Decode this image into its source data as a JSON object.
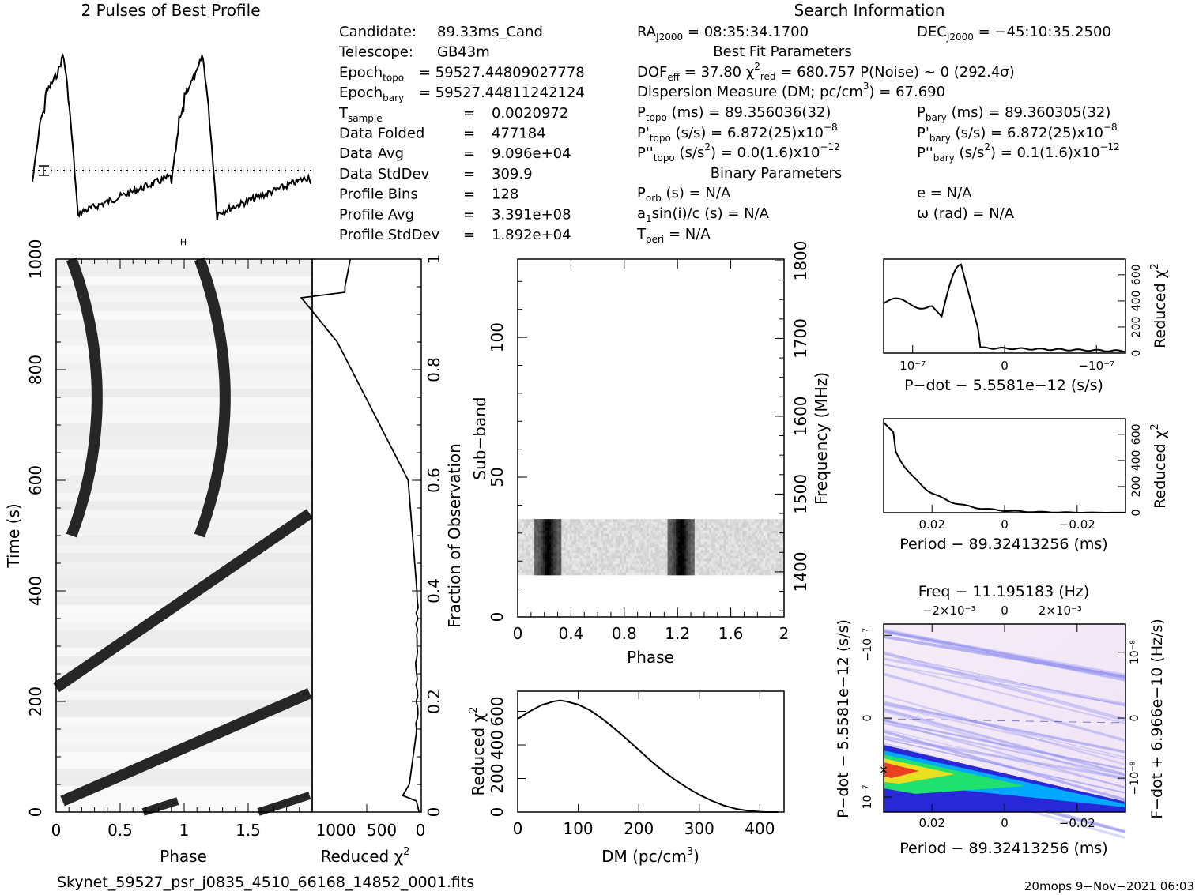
{
  "title_profile": "2 Pulses of Best Profile",
  "title_search": "Search Information",
  "info_left": [
    {
      "k": "Candidate:",
      "v": "89.33ms_Cand"
    },
    {
      "k": "Telescope:",
      "v": "GB43m"
    },
    {
      "k": "Epoch_topo",
      "v": "= 59527.44809027778"
    },
    {
      "k": "Epoch_bary",
      "v": "= 59527.44811242124"
    },
    {
      "k": "T_sample",
      "v": "0.0020972"
    },
    {
      "k": "Data Folded",
      "v": "477184"
    },
    {
      "k": "Data Avg",
      "v": "9.096e+04"
    },
    {
      "k": "Data StdDev",
      "v": "309.9"
    },
    {
      "k": "Profile Bins",
      "v": "128"
    },
    {
      "k": "Profile Avg",
      "v": "3.391e+08"
    },
    {
      "k": "Profile StdDev",
      "v": "1.892e+04"
    }
  ],
  "info_mid": {
    "ra": "RA_J2000 = 08:35:34.1700",
    "dec": "DEC_J2000 = −45:10:35.2500",
    "best_fit": "Best Fit Parameters",
    "dof": "DOF_eff = 37.80  χ²_red = 680.757  P(Noise) ~ 0  (292.4σ)",
    "dm": "Dispersion Measure (DM; pc/cm³) = 67.690",
    "ptopo": "P_topo (ms) = 89.356036(32)",
    "pbary": "P_bary (ms) = 89.360305(32)",
    "pdtopo": "P'_topo (s/s) = 6.872(25)x10⁻⁸",
    "pdbary": "P'_bary (s/s) = 6.872(25)x10⁻⁸",
    "pddtopo": "P''_topo (s/s²) = 0.0(1.6)x10⁻¹²",
    "pddbary": "P''_bary (s/s²) = 0.1(1.6)x10⁻¹²",
    "binary": "Binary Parameters",
    "porb": "P_orb (s) = N/A",
    "e": "e = N/A",
    "a1": "a_1 sin(i)/c (s) = N/A",
    "omega": "ω (rad) = N/A",
    "tperi": "T_peri = N/A"
  },
  "footer_file": "Skynet_59527_psr_j0835_4510_66168_14852_0001.fits",
  "footer_right": "20mops  9−Nov−2021 06:03",
  "chart_data": [
    {
      "name": "profile",
      "type": "line",
      "x_range": [
        0,
        2
      ],
      "peaks_phase": [
        0.22,
        1.22
      ],
      "mean_line": "dotted"
    },
    {
      "name": "time_phase",
      "type": "heatmap",
      "xlabel": "Phase",
      "ylabel": "Time (s)",
      "xlim": [
        0,
        2
      ],
      "ylim": [
        0,
        1000
      ],
      "xticks": [
        "0",
        "0.5",
        "1",
        "1.5"
      ],
      "yticks": [
        "0",
        "200",
        "400",
        "600",
        "800",
        "1000"
      ]
    },
    {
      "name": "time_chi2",
      "type": "line",
      "xlabel": "Reduced χ²",
      "ylabel_right": "Fraction of Observation",
      "xticks": [
        "1000",
        "500",
        "0"
      ],
      "yticks_right": [
        "0",
        "0.2",
        "0.4",
        "0.6",
        "0.8",
        "1"
      ]
    },
    {
      "name": "subband_phase",
      "type": "heatmap",
      "xlabel": "Phase",
      "ylabel": "Sub−band",
      "ylabel_right": "Frequency (MHz)",
      "xlim": [
        0,
        2
      ],
      "ylim": [
        0,
        128
      ],
      "xticks": [
        "0",
        "0.4",
        "0.8",
        "1.2",
        "1.6",
        "2"
      ],
      "yticks": [
        "0",
        "50",
        "100"
      ],
      "yticks_right": [
        "1400",
        "1500",
        "1600",
        "1700",
        "1800"
      ],
      "active_subbands": [
        15,
        35
      ]
    },
    {
      "name": "dm_chi2",
      "type": "line",
      "xlabel": "DM (pc/cm³)",
      "ylabel": "Reduced χ²",
      "xlim": [
        0,
        440
      ],
      "ylim": [
        0,
        720
      ],
      "xticks": [
        "0",
        "100",
        "200",
        "300",
        "400"
      ],
      "yticks": [
        "0",
        "200",
        "400",
        "600"
      ],
      "x": [
        0,
        20,
        40,
        60,
        70,
        80,
        100,
        120,
        140,
        160,
        180,
        200,
        220,
        240,
        260,
        280,
        300,
        320,
        340,
        360,
        380,
        400,
        410,
        430
      ],
      "y": [
        555,
        600,
        638,
        660,
        665,
        660,
        640,
        605,
        555,
        498,
        435,
        370,
        305,
        245,
        192,
        145,
        103,
        68,
        40,
        20,
        8,
        2,
        0,
        0
      ]
    },
    {
      "name": "pdot_chi2",
      "type": "line",
      "xlabel": "P−dot − 5.5581e−12 (s/s)",
      "ylabel_right": "Reduced χ²",
      "xticks": [
        "10⁻⁷",
        "0",
        "−10⁻⁷"
      ],
      "yticks_right": [
        "0",
        "200",
        "400",
        "600"
      ],
      "peak": 680
    },
    {
      "name": "period_chi2",
      "type": "line",
      "xlabel": "Period − 89.32413256 (ms)",
      "ylabel_right": "Reduced χ²",
      "xticks": [
        "0.02",
        "0",
        "−0.02"
      ],
      "yticks_right": [
        "0",
        "200",
        "400",
        "600"
      ],
      "peak": 680
    },
    {
      "name": "period_pdot",
      "type": "heatmap",
      "title": "Freq − 11.195183 (Hz)",
      "xlabel": "Period − 89.32413256 (ms)",
      "ylabel": "P−dot − 5.5581e−12 (s/s)",
      "ylabel_right": "F−dot + 6.966e−10 (Hz/s)",
      "xticks": [
        "0.02",
        "0",
        "−0.02"
      ],
      "top_ticks": [
        "−2×10⁻³",
        "0",
        "2×10⁻³"
      ],
      "yticks": [
        "−10⁻⁷",
        "0",
        "10⁻⁷"
      ],
      "yticks_right": [
        "10⁻⁸",
        "0",
        "−10⁻⁸"
      ]
    }
  ]
}
